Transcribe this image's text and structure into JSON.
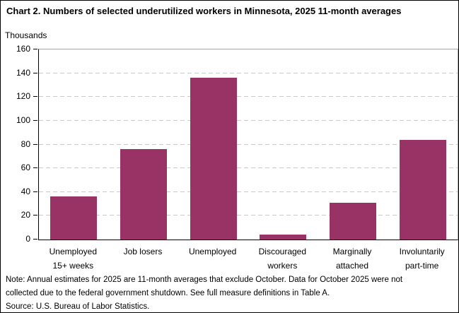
{
  "title": "Chart 2. Numbers of selected underutilized workers in Minnesota, 2025 11-month averages",
  "chart_data": {
    "type": "bar",
    "title": "Chart 2. Numbers of selected underutilized workers in Minnesota, 2025 11-month averages",
    "ylabel": "Thousands",
    "xlabel": "",
    "categories": [
      "Unemployed 15+ weeks",
      "Job losers",
      "Unemployed",
      "Discouraged workers",
      "Marginally attached",
      "Involuntarily part-time"
    ],
    "category_label_lines": [
      [
        "Unemployed",
        "15+ weeks"
      ],
      [
        "Job losers"
      ],
      [
        "Unemployed"
      ],
      [
        "Discouraged",
        "workers"
      ],
      [
        "Marginally",
        "attached"
      ],
      [
        "Involuntarily",
        "part-time"
      ]
    ],
    "values": [
      36,
      76,
      136,
      4,
      31,
      84
    ],
    "ylim": [
      0,
      160
    ],
    "ytick_step": 20,
    "ytick_labels": [
      "0",
      "20",
      "40",
      "60",
      "80",
      "100",
      "120",
      "140",
      "160"
    ],
    "grid": "horizontal-dashed",
    "legend": "none",
    "colors": {
      "bar": "#993366",
      "gridline": "#c9c9c9",
      "plot_border": "#a6a6a6",
      "axis": "#000000"
    }
  },
  "notes": {
    "lines": [
      "Note: Annual estimates for 2025 are 11-month averages that exclude October. Data for October 2025 were not",
      "collected due to the federal government shutdown. See full measure definitions in Table A.",
      "Source: U.S. Bureau of Labor Statistics."
    ]
  }
}
